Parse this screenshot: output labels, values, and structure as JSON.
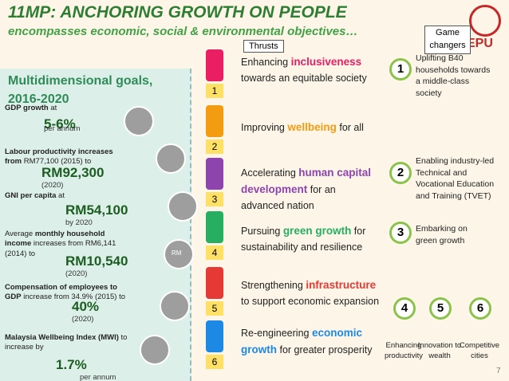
{
  "header": {
    "title": "11MP: ANCHORING GROWTH ON PEOPLE",
    "subtitle": "encompasses economic, social & environmental objectives…",
    "logo": "EPU"
  },
  "goals": {
    "title": "Multidimensional goals, 2016-2020",
    "icon_text": "RM",
    "items": [
      {
        "parts": [
          {
            "text": "GDP growth",
            "bold": true
          },
          {
            "text": " at"
          }
        ],
        "value": "5-6%",
        "note": "per annum"
      },
      {
        "parts": [
          {
            "text": "Labour productivity increases from",
            "bold": true
          },
          {
            "text": " RM77,100 (2015) to"
          }
        ],
        "value": "RM92,300",
        "note": "(2020)"
      },
      {
        "parts": [
          {
            "text": "GNI per capita",
            "bold": true
          },
          {
            "text": " at"
          }
        ],
        "value": "RM54,100",
        "note": "by 2020"
      },
      {
        "parts": [
          {
            "text": "Average "
          },
          {
            "text": "monthly household income",
            "bold": true
          },
          {
            "text": " increases from RM6,141 (2014) to"
          }
        ],
        "value": "RM10,540",
        "note": "(2020)"
      },
      {
        "parts": [
          {
            "text": "Compensation of employees to GDP",
            "bold": true
          },
          {
            "text": " increase from 34.9% (2015) to"
          }
        ],
        "value": "40%",
        "note": "(2020)"
      },
      {
        "parts": [
          {
            "text": "Malaysia Wellbeing Index (MWI)",
            "bold": true
          },
          {
            "text": " to increase by"
          }
        ],
        "value": "1.7%",
        "note": "per annum"
      }
    ]
  },
  "thrusts": {
    "label": "Thrusts",
    "items": [
      {
        "number": "1",
        "parts": [
          "Enhancing ",
          "inclusiveness",
          " towards an equitable society"
        ]
      },
      {
        "number": "2",
        "parts": [
          "Improving ",
          "wellbeing",
          " for all"
        ]
      },
      {
        "number": "3",
        "parts": [
          "Accelerating ",
          "human capital development",
          " for an advanced nation"
        ]
      },
      {
        "number": "4",
        "parts": [
          "Pursuing ",
          "green growth",
          " for sustainability and resilience"
        ]
      },
      {
        "number": "5",
        "parts": [
          "Strengthening ",
          "infrastructure",
          " to support economic expansion"
        ]
      },
      {
        "number": "6",
        "parts": [
          "Re-engineering ",
          "economic growth",
          " for greater prosperity"
        ]
      }
    ]
  },
  "game_changers": {
    "label": "Game changers",
    "items": [
      {
        "number": "1",
        "text": "Uplifting B40 households towards  a middle-class  society"
      },
      {
        "number": "2",
        "text": "Enabling industry-led Technical and Vocational Education and Training (TVET)"
      },
      {
        "number": "3",
        "text": "Embarking on green growth"
      },
      {
        "number": "4",
        "text": "Enhancing productivity"
      },
      {
        "number": "5",
        "text": "Innovation to wealth"
      },
      {
        "number": "6",
        "text": "Competitive cities"
      }
    ]
  },
  "page_number": "7"
}
